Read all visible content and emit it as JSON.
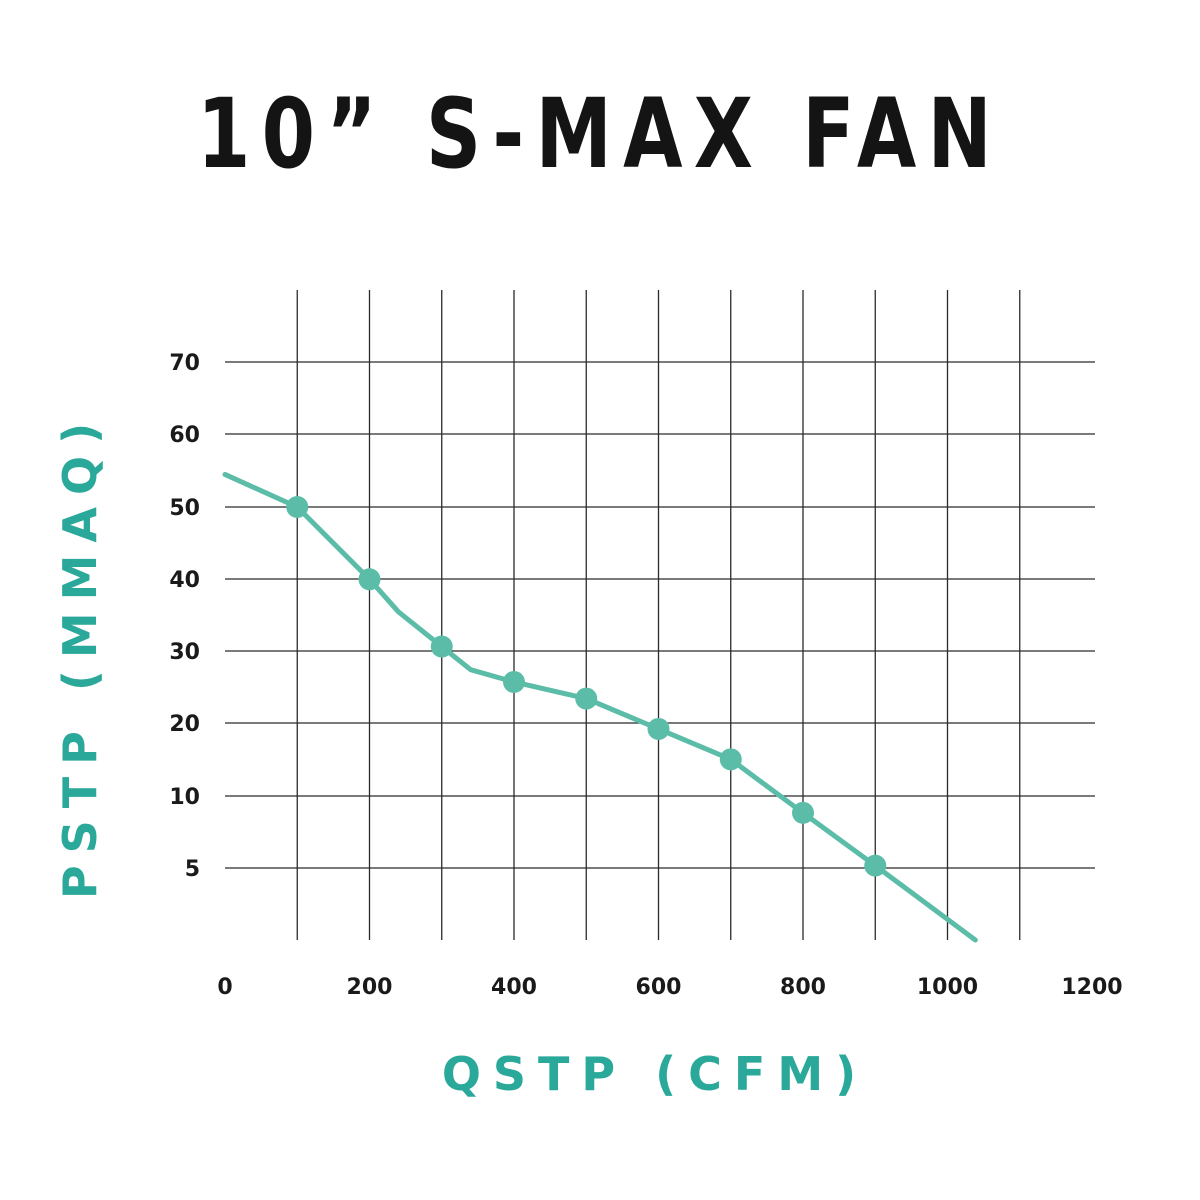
{
  "chart_data": {
    "type": "line",
    "title": "10” S-MAX FAN",
    "xlabel": "QSTP (CFM)",
    "ylabel": "PSTP (MMAQ)",
    "x_ticks": [
      "0",
      "200",
      "400",
      "600",
      "800",
      "1000",
      "1200"
    ],
    "y_ticks": [
      "70",
      "60",
      "50",
      "40",
      "30",
      "20",
      "10",
      "5"
    ],
    "xlim": [
      0,
      1200
    ],
    "grid": true,
    "colors": {
      "line": "#5bbda7",
      "axis_title": "#2aa89a",
      "grid": "#2a2a2a"
    },
    "series": [
      {
        "points": [
          [
            0,
            54.5
          ],
          [
            100,
            50
          ],
          [
            200,
            40
          ],
          [
            240,
            35.5
          ],
          [
            300,
            30.7
          ],
          [
            340,
            27.5
          ],
          [
            400,
            25.8
          ],
          [
            500,
            23.5
          ],
          [
            600,
            19.3
          ],
          [
            700,
            15.1
          ],
          [
            800,
            7.7
          ],
          [
            900,
            0.4
          ],
          [
            1040,
            -10
          ]
        ],
        "markers": [
          [
            100,
            50
          ],
          [
            200,
            40
          ],
          [
            300,
            30.7
          ],
          [
            400,
            25.8
          ],
          [
            500,
            23.5
          ],
          [
            600,
            19.3
          ],
          [
            700,
            15.1
          ],
          [
            800,
            7.7
          ],
          [
            900,
            0.4
          ]
        ]
      }
    ]
  }
}
